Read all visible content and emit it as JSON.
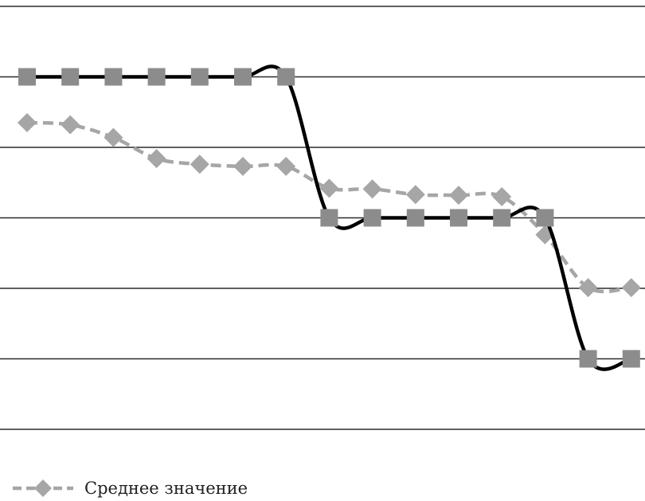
{
  "chart_data": {
    "type": "line",
    "title": "",
    "xlabel": "",
    "ylabel": "",
    "grid": true,
    "legend_position": "bottom-left",
    "ylim": [
      0,
      6
    ],
    "x": [
      1,
      2,
      3,
      4,
      5,
      6,
      7,
      8,
      9,
      10,
      11,
      12,
      13,
      14,
      15
    ],
    "series": [
      {
        "name": "Среднее значение",
        "style": "dashed-diamond",
        "color": "#a6a6a6",
        "x": [
          1,
          2,
          3,
          4,
          5,
          6,
          7,
          8,
          9,
          10,
          11,
          12,
          13,
          14,
          15
        ],
        "values": [
          4.35,
          4.32,
          4.14,
          3.84,
          3.76,
          3.73,
          3.73,
          3.42,
          3.41,
          3.33,
          3.32,
          3.3,
          2.76,
          2.01,
          2.01
        ]
      },
      {
        "name": "",
        "style": "solid-square",
        "color": "#000000",
        "marker_color": "#8c8c8c",
        "x": [
          1,
          2,
          3,
          4,
          5,
          6,
          7,
          8,
          9,
          10,
          11,
          12,
          13,
          14,
          15
        ],
        "values": [
          5,
          5,
          5,
          5,
          5,
          5,
          5,
          3,
          3,
          3,
          3,
          3,
          3,
          1,
          1
        ]
      }
    ]
  }
}
